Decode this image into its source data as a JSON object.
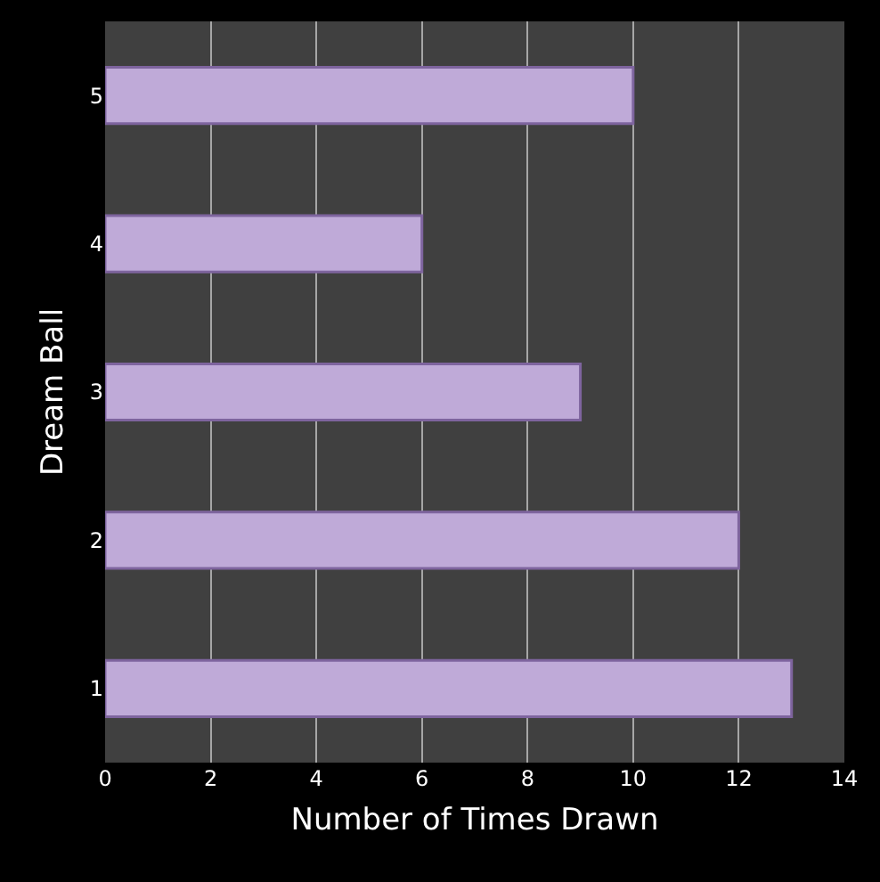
{
  "chart_data": {
    "type": "bar",
    "orientation": "horizontal",
    "xlabel": "Number of Times Drawn",
    "ylabel": "Dream Ball",
    "categories": [
      "5",
      "4",
      "3",
      "2",
      "1"
    ],
    "values": [
      10,
      6,
      9,
      12,
      13
    ],
    "color": "#bfaad8",
    "xlim": [
      0,
      14
    ],
    "xticks": [
      0,
      2,
      4,
      6,
      8,
      10,
      12,
      14
    ],
    "grid": "x"
  }
}
